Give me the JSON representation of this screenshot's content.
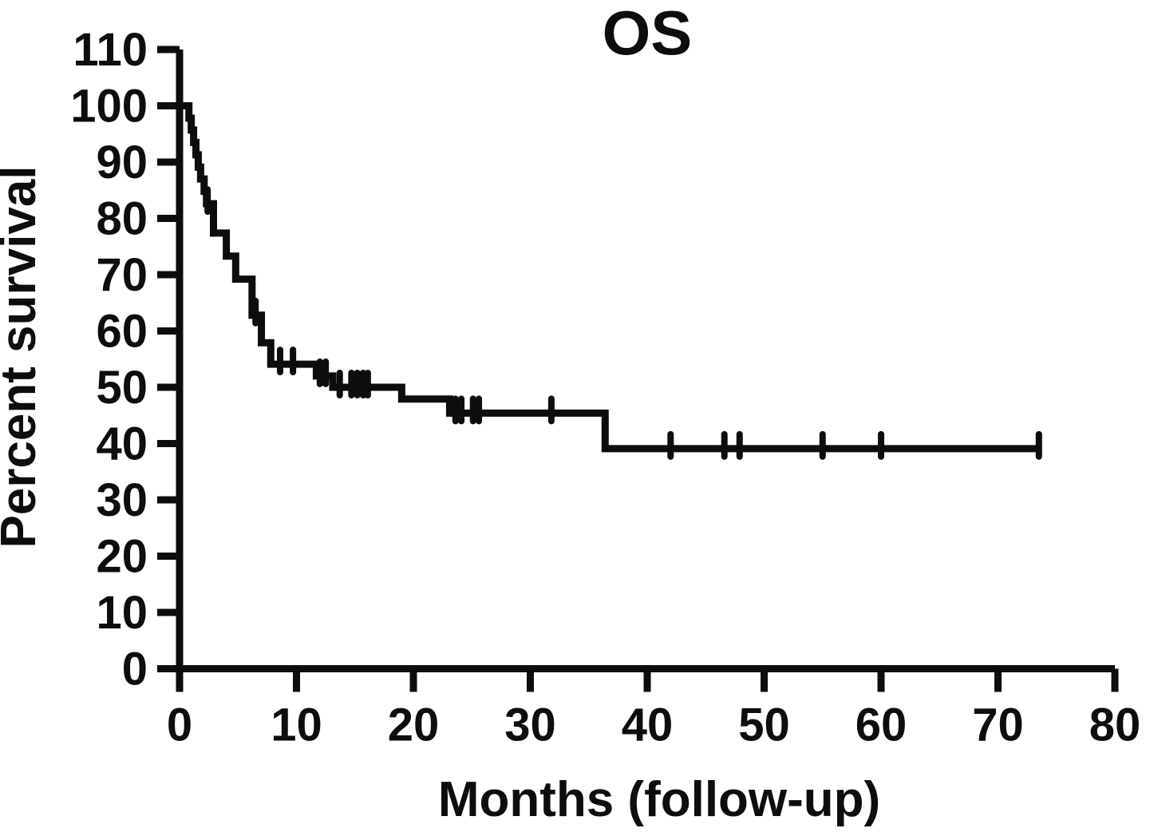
{
  "title": "OS",
  "xlabel": "Months (follow-up)",
  "ylabel": "Percent survival",
  "chart_data": {
    "type": "line",
    "subtype": "kaplan-meier-step",
    "title": "OS",
    "xlabel": "Months (follow-up)",
    "ylabel": "Percent survival",
    "xlim": [
      0,
      80
    ],
    "ylim": [
      0,
      110
    ],
    "xticks": [
      0,
      10,
      20,
      30,
      40,
      50,
      60,
      70,
      80
    ],
    "yticks": [
      0,
      10,
      20,
      30,
      40,
      50,
      60,
      70,
      80,
      90,
      100,
      110
    ],
    "grid": false,
    "legend": "none",
    "line_color": "#0d0d0d",
    "background_color": "#ffffff",
    "series": [
      {
        "name": "OS",
        "start": [
          0,
          100
        ],
        "steps": [
          [
            0.8,
            97.8
          ],
          [
            1.0,
            95.7
          ],
          [
            1.2,
            93.5
          ],
          [
            1.4,
            91.3
          ],
          [
            1.6,
            89.1
          ],
          [
            1.8,
            87.0
          ],
          [
            2.1,
            84.8
          ],
          [
            2.3,
            82.6
          ],
          [
            2.9,
            77.4
          ],
          [
            4.0,
            73.3
          ],
          [
            4.8,
            69.2
          ],
          [
            6.2,
            62.8
          ],
          [
            7.0,
            57.9
          ],
          [
            7.8,
            54.1
          ],
          [
            11.7,
            52.0
          ],
          [
            13.1,
            50.0
          ],
          [
            19.0,
            47.9
          ],
          [
            23.1,
            45.4
          ],
          [
            36.4,
            39.1
          ]
        ],
        "end_month": 73.5,
        "censor_marks": [
          [
            2.4,
            82.6
          ],
          [
            6.5,
            62.8
          ],
          [
            8.6,
            54.1
          ],
          [
            9.7,
            54.1
          ],
          [
            12.0,
            52.0
          ],
          [
            12.5,
            52.0
          ],
          [
            13.7,
            50.0
          ],
          [
            14.7,
            50.0
          ],
          [
            15.2,
            50.0
          ],
          [
            15.7,
            50.0
          ],
          [
            16.1,
            50.0
          ],
          [
            23.6,
            45.4
          ],
          [
            24.1,
            45.4
          ],
          [
            25.1,
            45.4
          ],
          [
            25.6,
            45.4
          ],
          [
            31.8,
            45.4
          ],
          [
            42.0,
            39.1
          ],
          [
            46.6,
            39.1
          ],
          [
            47.9,
            39.1
          ],
          [
            55.0,
            39.1
          ],
          [
            60.0,
            39.1
          ],
          [
            73.5,
            39.1
          ]
        ]
      }
    ]
  }
}
